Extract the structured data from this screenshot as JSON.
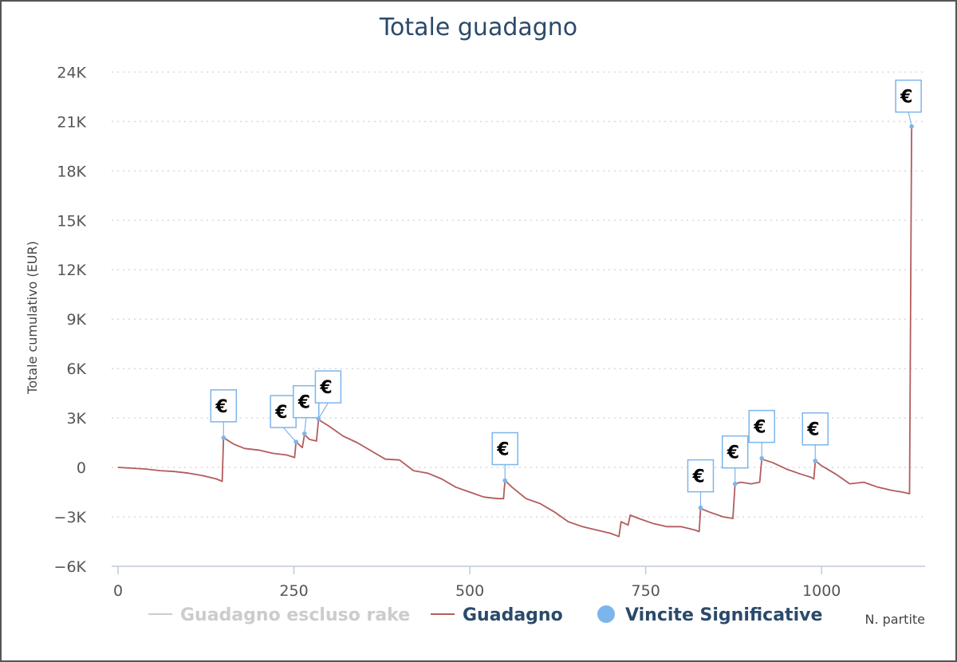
{
  "chart_data": {
    "type": "line",
    "title": "Totale guadagno",
    "xlabel": "N. partite",
    "ylabel": "Totale cumulativo (EUR)",
    "xlim": [
      0,
      1140
    ],
    "ylim": [
      -6000,
      24000
    ],
    "x_ticks": [
      0,
      250,
      500,
      750,
      1000
    ],
    "x_tick_labels": [
      "0",
      "250",
      "500",
      "750",
      "1000"
    ],
    "y_ticks": [
      -6000,
      -3000,
      0,
      3000,
      6000,
      9000,
      12000,
      15000,
      18000,
      21000,
      24000
    ],
    "y_tick_labels": [
      "−6K",
      "−3K",
      "0",
      "3K",
      "6K",
      "9K",
      "12K",
      "15K",
      "18K",
      "21K",
      "24K"
    ],
    "grid": "horizontal-dotted",
    "legend_position": "bottom",
    "legend": [
      {
        "name": "Guadagno escluso rake",
        "color": "#cccccc",
        "symbol": "line",
        "active": false
      },
      {
        "name": "Guadagno",
        "color": "#b35c5c",
        "symbol": "line",
        "active": true
      },
      {
        "name": "Vincite Significative",
        "color": "#7cb5ec",
        "symbol": "circle",
        "active": true
      }
    ],
    "series": [
      {
        "name": "Guadagno",
        "color": "#b35c5c",
        "points": [
          [
            0,
            0
          ],
          [
            20,
            -50
          ],
          [
            40,
            -100
          ],
          [
            60,
            -200
          ],
          [
            80,
            -250
          ],
          [
            100,
            -350
          ],
          [
            120,
            -500
          ],
          [
            140,
            -700
          ],
          [
            148,
            -850
          ],
          [
            150,
            1800
          ],
          [
            165,
            1400
          ],
          [
            180,
            1150
          ],
          [
            200,
            1050
          ],
          [
            220,
            850
          ],
          [
            240,
            750
          ],
          [
            251,
            600
          ],
          [
            253,
            1550
          ],
          [
            262,
            1200
          ],
          [
            265,
            2000
          ],
          [
            272,
            1700
          ],
          [
            282,
            1600
          ],
          [
            285,
            2900
          ],
          [
            300,
            2500
          ],
          [
            320,
            1900
          ],
          [
            340,
            1500
          ],
          [
            360,
            1000
          ],
          [
            380,
            500
          ],
          [
            400,
            450
          ],
          [
            420,
            -200
          ],
          [
            440,
            -350
          ],
          [
            460,
            -700
          ],
          [
            480,
            -1200
          ],
          [
            500,
            -1500
          ],
          [
            520,
            -1800
          ],
          [
            540,
            -1900
          ],
          [
            548,
            -1900
          ],
          [
            550,
            -800
          ],
          [
            560,
            -1200
          ],
          [
            580,
            -1900
          ],
          [
            600,
            -2200
          ],
          [
            620,
            -2700
          ],
          [
            640,
            -3300
          ],
          [
            660,
            -3600
          ],
          [
            680,
            -3800
          ],
          [
            700,
            -4000
          ],
          [
            712,
            -4200
          ],
          [
            715,
            -3300
          ],
          [
            725,
            -3500
          ],
          [
            728,
            -2900
          ],
          [
            740,
            -3100
          ],
          [
            760,
            -3400
          ],
          [
            780,
            -3600
          ],
          [
            800,
            -3600
          ],
          [
            820,
            -3800
          ],
          [
            826,
            -3900
          ],
          [
            828,
            -2500
          ],
          [
            840,
            -2700
          ],
          [
            860,
            -3000
          ],
          [
            874,
            -3100
          ],
          [
            877,
            -1000
          ],
          [
            885,
            -900
          ],
          [
            900,
            -1000
          ],
          [
            912,
            -900
          ],
          [
            915,
            500
          ],
          [
            930,
            300
          ],
          [
            950,
            -100
          ],
          [
            970,
            -400
          ],
          [
            985,
            -600
          ],
          [
            989,
            -700
          ],
          [
            991,
            400
          ],
          [
            1000,
            100
          ],
          [
            1020,
            -400
          ],
          [
            1040,
            -1000
          ],
          [
            1060,
            -900
          ],
          [
            1080,
            -1200
          ],
          [
            1100,
            -1400
          ],
          [
            1115,
            -1500
          ],
          [
            1125,
            -1600
          ],
          [
            1128,
            20700
          ]
        ]
      }
    ],
    "significant_wins": [
      {
        "x": 150,
        "y": 1800,
        "label": "€"
      },
      {
        "x": 253,
        "y": 1550,
        "label": "€"
      },
      {
        "x": 265,
        "y": 2050,
        "label": "€"
      },
      {
        "x": 285,
        "y": 2950,
        "label": "€"
      },
      {
        "x": 550,
        "y": -800,
        "label": "€"
      },
      {
        "x": 828,
        "y": -2450,
        "label": "€"
      },
      {
        "x": 877,
        "y": -1000,
        "label": "€"
      },
      {
        "x": 915,
        "y": 550,
        "label": "€"
      },
      {
        "x": 991,
        "y": 400,
        "label": "€"
      },
      {
        "x": 1128,
        "y": 20700,
        "label": "€"
      }
    ]
  }
}
